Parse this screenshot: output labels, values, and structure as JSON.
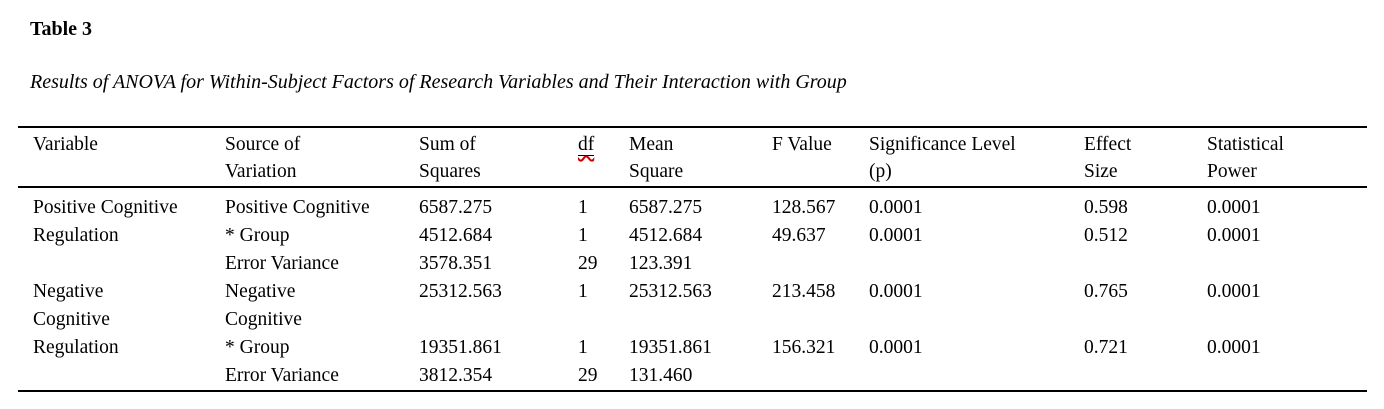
{
  "document": {
    "table_label": "Table 3",
    "caption": "Results of ANOVA for Within-Subject Factors of Research Variables and Their Interaction with Group"
  },
  "table": {
    "columns": [
      {
        "key": "variable",
        "label": "Variable"
      },
      {
        "key": "source_of_variation",
        "label": "Source of\nVariation"
      },
      {
        "key": "sum_of_squares",
        "label": "Sum of\nSquares"
      },
      {
        "key": "df",
        "label": "df",
        "spellcheck_squiggle": true
      },
      {
        "key": "mean_square",
        "label": "Mean\nSquare"
      },
      {
        "key": "f_value",
        "label": "F Value"
      },
      {
        "key": "significance_level",
        "label": "Significance Level\n(p)"
      },
      {
        "key": "effect_size",
        "label": "Effect\nSize"
      },
      {
        "key": "statistical_power",
        "label": "Statistical\nPower"
      }
    ],
    "rows": [
      {
        "cells": [
          "Positive Cognitive",
          "Positive Cognitive",
          "6587.275",
          "1",
          "6587.275",
          "128.567",
          "0.0001",
          "0.598",
          "0.0001"
        ]
      },
      {
        "cells": [
          "Regulation",
          "* Group",
          "4512.684",
          "1",
          "4512.684",
          "49.637",
          "0.0001",
          "0.512",
          "0.0001"
        ]
      },
      {
        "cells": [
          "",
          "Error Variance",
          "3578.351",
          "29",
          "123.391",
          "",
          "",
          "",
          ""
        ]
      },
      {
        "cells": [
          "Negative\nCognitive",
          "Negative\nCognitive",
          "25312.563",
          "1",
          "25312.563",
          "213.458",
          "0.0001",
          "0.765",
          "0.0001"
        ]
      },
      {
        "cells": [
          "Regulation",
          "* Group",
          "19351.861",
          "1",
          "19351.861",
          "156.321",
          "0.0001",
          "0.721",
          "0.0001"
        ]
      },
      {
        "cells": [
          "",
          "Error Variance",
          "3812.354",
          "29",
          "131.460",
          "",
          "",
          "",
          ""
        ]
      }
    ],
    "colors": {
      "text": "#000000",
      "rule": "#000000",
      "spellcheck_squiggle": "#cc0000",
      "background": "#ffffff"
    }
  }
}
